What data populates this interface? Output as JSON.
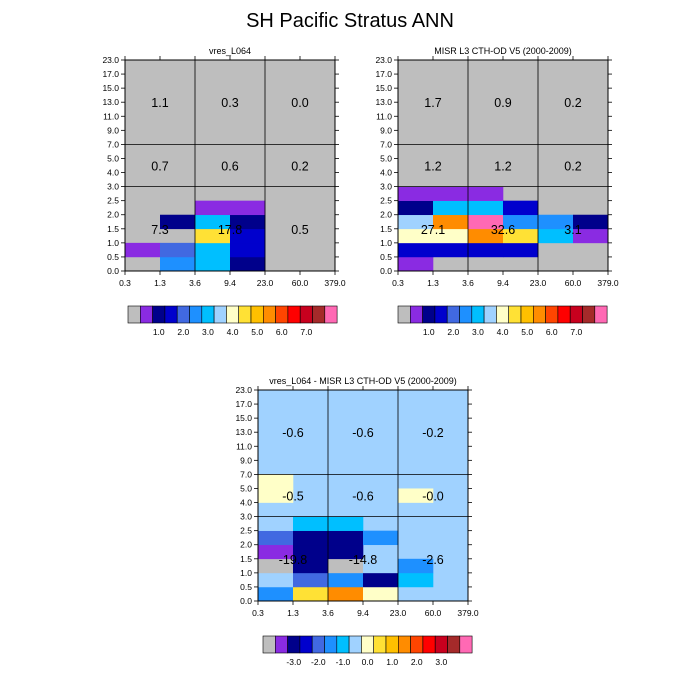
{
  "title": "SH Pacific Stratus ANN",
  "x_tick_labels": [
    "0.3",
    "1.3",
    "3.6",
    "9.4",
    "23.0",
    "60.0",
    "379.0"
  ],
  "y_tick_labels": [
    "0.0",
    "0.5",
    "1.0",
    "1.5",
    "2.0",
    "2.5",
    "3.0",
    "4.0",
    "5.0",
    "7.0",
    "9.0",
    "11.0",
    "13.0",
    "15.0",
    "17.0",
    "23.0"
  ],
  "colors": {
    "abs_palette": [
      "#bebebe",
      "#8a2be2",
      "#00008b",
      "#0000cd",
      "#4169e1",
      "#1e90ff",
      "#00bfff",
      "#a0d2ff",
      "#ffffc8",
      "#ffe135",
      "#ffc000",
      "#ff8c00",
      "#ff4500",
      "#ff0000",
      "#c8001e",
      "#a52a2a",
      "#ff69b4"
    ],
    "diff_palette": [
      "#bebebe",
      "#8a2be2",
      "#00008b",
      "#0000cd",
      "#4169e1",
      "#1e90ff",
      "#00bfff",
      "#a0d2ff",
      "#ffffc8",
      "#ffe135",
      "#ffc000",
      "#ff8c00",
      "#ff4500",
      "#ff0000",
      "#c8001e",
      "#a52a2a",
      "#ff69b4"
    ]
  },
  "abs_colorbar_labels": [
    "1.0",
    "2.0",
    "3.0",
    "4.0",
    "5.0",
    "6.0",
    "7.0"
  ],
  "diff_colorbar_labels": [
    "-3.0",
    "-2.0",
    "-1.0",
    "0.0",
    "1.0",
    "2.0",
    "3.0"
  ],
  "chart_data": [
    {
      "type": "heatmap",
      "title": "vres_L064",
      "background_color": "#bebebe",
      "cells": [
        {
          "x": 0,
          "y": 1,
          "c": 1
        },
        {
          "x": 1,
          "y": 0,
          "c": 5
        },
        {
          "x": 1,
          "y": 1,
          "c": 4
        },
        {
          "x": 1,
          "y": 3,
          "c": 2
        },
        {
          "x": 2,
          "y": 0,
          "c": 6
        },
        {
          "x": 2,
          "y": 1,
          "c": 6
        },
        {
          "x": 2,
          "y": 2,
          "c": 9
        },
        {
          "x": 2,
          "y": 3,
          "c": 6
        },
        {
          "x": 2,
          "y": 4,
          "c": 1
        },
        {
          "x": 3,
          "y": 0,
          "c": 2
        },
        {
          "x": 3,
          "y": 1,
          "c": 3
        },
        {
          "x": 3,
          "y": 2,
          "c": 3
        },
        {
          "x": 3,
          "y": 3,
          "c": 2
        },
        {
          "x": 3,
          "y": 4,
          "c": 1
        }
      ],
      "box_values": [
        {
          "col": 0,
          "row": 0,
          "v": "7.3"
        },
        {
          "col": 1,
          "row": 0,
          "v": "17.8"
        },
        {
          "col": 2,
          "row": 0,
          "v": "0.5"
        },
        {
          "col": 0,
          "row": 1,
          "v": "0.7"
        },
        {
          "col": 1,
          "row": 1,
          "v": "0.6"
        },
        {
          "col": 2,
          "row": 1,
          "v": "0.2"
        },
        {
          "col": 0,
          "row": 2,
          "v": "1.1"
        },
        {
          "col": 1,
          "row": 2,
          "v": "0.3"
        },
        {
          "col": 2,
          "row": 2,
          "v": "0.0"
        }
      ]
    },
    {
      "type": "heatmap",
      "title": "MISR L3 CTH-OD V5 (2000-2009)",
      "background_color": "#bebebe",
      "cells": [
        {
          "x": 0,
          "y": 0,
          "c": 1
        },
        {
          "x": 0,
          "y": 1,
          "c": 3
        },
        {
          "x": 0,
          "y": 2,
          "c": 8
        },
        {
          "x": 0,
          "y": 3,
          "c": 7
        },
        {
          "x": 0,
          "y": 4,
          "c": 2
        },
        {
          "x": 0,
          "y": 5,
          "c": 1
        },
        {
          "x": 1,
          "y": 1,
          "c": 3
        },
        {
          "x": 1,
          "y": 2,
          "c": 8
        },
        {
          "x": 1,
          "y": 3,
          "c": 11
        },
        {
          "x": 1,
          "y": 4,
          "c": 6
        },
        {
          "x": 1,
          "y": 5,
          "c": 1
        },
        {
          "x": 2,
          "y": 1,
          "c": 3
        },
        {
          "x": 2,
          "y": 2,
          "c": 11
        },
        {
          "x": 2,
          "y": 3,
          "c": 16
        },
        {
          "x": 2,
          "y": 4,
          "c": 6
        },
        {
          "x": 2,
          "y": 5,
          "c": 1
        },
        {
          "x": 3,
          "y": 1,
          "c": 3
        },
        {
          "x": 3,
          "y": 2,
          "c": 9
        },
        {
          "x": 3,
          "y": 3,
          "c": 5
        },
        {
          "x": 3,
          "y": 4,
          "c": 3
        },
        {
          "x": 4,
          "y": 2,
          "c": 6
        },
        {
          "x": 4,
          "y": 3,
          "c": 5
        },
        {
          "x": 5,
          "y": 2,
          "c": 1
        },
        {
          "x": 5,
          "y": 3,
          "c": 2
        }
      ],
      "box_values": [
        {
          "col": 0,
          "row": 0,
          "v": "27.1"
        },
        {
          "col": 1,
          "row": 0,
          "v": "32.6"
        },
        {
          "col": 2,
          "row": 0,
          "v": "3.1"
        },
        {
          "col": 0,
          "row": 1,
          "v": "1.2"
        },
        {
          "col": 1,
          "row": 1,
          "v": "1.2"
        },
        {
          "col": 2,
          "row": 1,
          "v": "0.2"
        },
        {
          "col": 0,
          "row": 2,
          "v": "1.7"
        },
        {
          "col": 1,
          "row": 2,
          "v": "0.9"
        },
        {
          "col": 2,
          "row": 2,
          "v": "0.2"
        }
      ]
    },
    {
      "type": "heatmap",
      "title": "vres_L064 - MISR L3 CTH-OD V5 (2000-2009)",
      "background_color": "#a0d2ff",
      "cells": [
        {
          "x": 0,
          "y": 0,
          "c": 5
        },
        {
          "x": 0,
          "y": 1,
          "c": 7
        },
        {
          "x": 0,
          "y": 2,
          "c": 0
        },
        {
          "x": 0,
          "y": 3,
          "c": 1
        },
        {
          "x": 0,
          "y": 4,
          "c": 4
        },
        {
          "x": 0,
          "y": 5,
          "c": 7
        },
        {
          "x": 0,
          "y": 7,
          "c": 8
        },
        {
          "x": 0,
          "y": 8,
          "c": 8
        },
        {
          "x": 1,
          "y": 0,
          "c": 9
        },
        {
          "x": 1,
          "y": 1,
          "c": 4
        },
        {
          "x": 1,
          "y": 2,
          "c": 2
        },
        {
          "x": 1,
          "y": 3,
          "c": 2
        },
        {
          "x": 1,
          "y": 4,
          "c": 2
        },
        {
          "x": 1,
          "y": 5,
          "c": 6
        },
        {
          "x": 2,
          "y": 0,
          "c": 11
        },
        {
          "x": 2,
          "y": 1,
          "c": 5
        },
        {
          "x": 2,
          "y": 2,
          "c": 0
        },
        {
          "x": 2,
          "y": 3,
          "c": 2
        },
        {
          "x": 2,
          "y": 4,
          "c": 2
        },
        {
          "x": 2,
          "y": 5,
          "c": 6
        },
        {
          "x": 3,
          "y": 0,
          "c": 8
        },
        {
          "x": 3,
          "y": 1,
          "c": 2
        },
        {
          "x": 3,
          "y": 2,
          "c": 7
        },
        {
          "x": 3,
          "y": 4,
          "c": 5
        },
        {
          "x": 4,
          "y": 1,
          "c": 6
        },
        {
          "x": 4,
          "y": 2,
          "c": 5
        },
        {
          "x": 4,
          "y": 7,
          "c": 8
        }
      ],
      "box_values": [
        {
          "col": 0,
          "row": 0,
          "v": "-19.8"
        },
        {
          "col": 1,
          "row": 0,
          "v": "-14.8"
        },
        {
          "col": 2,
          "row": 0,
          "v": "-2.6"
        },
        {
          "col": 0,
          "row": 1,
          "v": "-0.5"
        },
        {
          "col": 1,
          "row": 1,
          "v": "-0.6"
        },
        {
          "col": 2,
          "row": 1,
          "v": "-0.0"
        },
        {
          "col": 0,
          "row": 2,
          "v": "-0.6"
        },
        {
          "col": 1,
          "row": 2,
          "v": "-0.6"
        },
        {
          "col": 2,
          "row": 2,
          "v": "-0.2"
        }
      ]
    }
  ]
}
